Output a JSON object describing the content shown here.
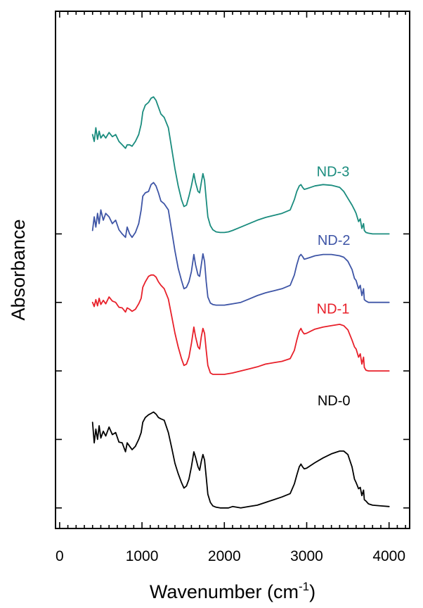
{
  "chart_data": {
    "type": "line",
    "xlabel": "Wavenumber (cm",
    "xlabel_sup": "-1",
    "xlabel_close": ")",
    "ylabel": "Absorbance",
    "xlim": [
      -50,
      4250
    ],
    "ylim": [
      -0.3,
      7.25
    ],
    "x_ticks": [
      0,
      1000,
      2000,
      3000,
      4000
    ],
    "x_tick_labels": [
      "0",
      "1000",
      "2000",
      "3000",
      "4000"
    ],
    "y_major_ticks": [
      0,
      1,
      2,
      3,
      4
    ],
    "y_tick_labels_shown": false,
    "series": [
      {
        "name": "ND-0",
        "color": "#000000",
        "label_at": [
          3330,
          1.5
        ],
        "x": [
          400,
          420,
          440,
          460,
          480,
          500,
          530,
          560,
          600,
          640,
          680,
          720,
          760,
          800,
          820,
          850,
          880,
          920,
          960,
          990,
          1010,
          1040,
          1080,
          1110,
          1140,
          1170,
          1200,
          1230,
          1270,
          1320,
          1360,
          1400,
          1440,
          1480,
          1510,
          1540,
          1570,
          1600,
          1630,
          1650,
          1680,
          1700,
          1720,
          1740,
          1760,
          1780,
          1800,
          1830,
          1860,
          1900,
          1950,
          2000,
          2050,
          2100,
          2200,
          2300,
          2400,
          2500,
          2600,
          2700,
          2800,
          2850,
          2880,
          2910,
          2930,
          2950,
          2970,
          3000,
          3050,
          3100,
          3200,
          3300,
          3400,
          3450,
          3500,
          3550,
          3580,
          3600,
          3630,
          3650,
          3670,
          3690,
          3700,
          3720,
          3750,
          3800,
          3900,
          4000
        ],
        "y": [
          1.25,
          0.95,
          1.15,
          1.0,
          1.2,
          1.02,
          1.12,
          1.05,
          1.18,
          1.07,
          1.1,
          0.96,
          0.95,
          0.82,
          0.95,
          0.9,
          0.85,
          0.9,
          1.0,
          1.1,
          1.25,
          1.32,
          1.36,
          1.38,
          1.4,
          1.37,
          1.32,
          1.3,
          1.28,
          1.1,
          0.88,
          0.65,
          0.5,
          0.37,
          0.29,
          0.32,
          0.42,
          0.6,
          0.82,
          0.74,
          0.6,
          0.55,
          0.68,
          0.78,
          0.7,
          0.45,
          0.2,
          0.08,
          0.03,
          0.01,
          0.0,
          0.0,
          0.0,
          0.02,
          0.0,
          0.02,
          0.04,
          0.08,
          0.12,
          0.16,
          0.21,
          0.35,
          0.48,
          0.6,
          0.64,
          0.6,
          0.57,
          0.58,
          0.62,
          0.66,
          0.73,
          0.79,
          0.83,
          0.83,
          0.78,
          0.6,
          0.42,
          0.37,
          0.28,
          0.3,
          0.18,
          0.26,
          0.12,
          0.1,
          0.06,
          0.04,
          0.03,
          0.02
        ]
      },
      {
        "name": "ND-1",
        "color": "#e8202a",
        "label_at": [
          3320,
          2.84
        ],
        "x": [
          400,
          420,
          440,
          460,
          480,
          500,
          530,
          560,
          600,
          640,
          680,
          720,
          760,
          800,
          820,
          850,
          880,
          920,
          960,
          990,
          1010,
          1040,
          1080,
          1110,
          1140,
          1170,
          1200,
          1230,
          1270,
          1320,
          1360,
          1400,
          1440,
          1480,
          1510,
          1540,
          1570,
          1600,
          1630,
          1650,
          1680,
          1700,
          1720,
          1740,
          1760,
          1780,
          1800,
          1830,
          1860,
          1900,
          1950,
          2000,
          2050,
          2100,
          2200,
          2300,
          2400,
          2500,
          2600,
          2700,
          2800,
          2850,
          2880,
          2910,
          2930,
          2950,
          2970,
          3000,
          3050,
          3100,
          3200,
          3300,
          3400,
          3450,
          3500,
          3550,
          3580,
          3600,
          3630,
          3650,
          3670,
          3690,
          3700,
          3720,
          3750,
          3800,
          3900,
          4000
        ],
        "y": [
          3.0,
          2.94,
          3.04,
          2.95,
          3.06,
          2.97,
          3.03,
          2.98,
          3.08,
          3.02,
          3.0,
          2.93,
          2.92,
          2.86,
          2.92,
          2.9,
          2.87,
          2.9,
          2.98,
          3.06,
          3.22,
          3.3,
          3.38,
          3.4,
          3.4,
          3.37,
          3.3,
          3.25,
          3.2,
          3.05,
          2.8,
          2.55,
          2.35,
          2.18,
          2.08,
          2.1,
          2.2,
          2.4,
          2.64,
          2.5,
          2.35,
          2.32,
          2.5,
          2.62,
          2.55,
          2.3,
          2.08,
          1.97,
          1.95,
          1.95,
          1.95,
          1.95,
          1.96,
          1.97,
          2.0,
          2.03,
          2.06,
          2.1,
          2.12,
          2.14,
          2.18,
          2.3,
          2.45,
          2.58,
          2.62,
          2.57,
          2.54,
          2.55,
          2.58,
          2.61,
          2.64,
          2.66,
          2.68,
          2.66,
          2.6,
          2.45,
          2.35,
          2.32,
          2.2,
          2.25,
          2.1,
          2.2,
          2.05,
          2.01,
          2.0,
          2.0,
          2.0,
          2.0
        ]
      },
      {
        "name": "ND-2",
        "color": "#3e55a6",
        "label_at": [
          3330,
          3.84
        ],
        "x": [
          400,
          420,
          440,
          460,
          480,
          500,
          530,
          560,
          600,
          640,
          680,
          720,
          760,
          800,
          820,
          850,
          880,
          920,
          960,
          990,
          1010,
          1040,
          1080,
          1110,
          1140,
          1170,
          1200,
          1230,
          1270,
          1320,
          1360,
          1400,
          1440,
          1480,
          1510,
          1540,
          1570,
          1600,
          1630,
          1650,
          1680,
          1700,
          1720,
          1740,
          1760,
          1780,
          1800,
          1830,
          1860,
          1900,
          1950,
          2000,
          2050,
          2100,
          2200,
          2300,
          2400,
          2500,
          2600,
          2700,
          2800,
          2850,
          2880,
          2910,
          2930,
          2950,
          2970,
          3000,
          3050,
          3100,
          3200,
          3300,
          3400,
          3450,
          3500,
          3550,
          3580,
          3600,
          3630,
          3650,
          3670,
          3690,
          3700,
          3720,
          3750,
          3800,
          3900,
          4000
        ],
        "y": [
          4.05,
          4.25,
          4.1,
          4.3,
          4.15,
          4.35,
          4.2,
          4.3,
          4.25,
          4.15,
          4.2,
          4.06,
          4.0,
          3.95,
          4.1,
          4.0,
          3.95,
          4.02,
          4.15,
          4.35,
          4.55,
          4.6,
          4.62,
          4.72,
          4.75,
          4.7,
          4.6,
          4.48,
          4.44,
          4.35,
          4.05,
          3.75,
          3.5,
          3.32,
          3.2,
          3.22,
          3.3,
          3.45,
          3.7,
          3.55,
          3.4,
          3.38,
          3.55,
          3.71,
          3.6,
          3.3,
          3.08,
          2.99,
          2.97,
          2.96,
          2.96,
          2.96,
          2.97,
          2.98,
          3.0,
          3.05,
          3.1,
          3.14,
          3.17,
          3.2,
          3.25,
          3.4,
          3.55,
          3.67,
          3.7,
          3.67,
          3.63,
          3.64,
          3.66,
          3.68,
          3.7,
          3.7,
          3.68,
          3.66,
          3.6,
          3.48,
          3.35,
          3.32,
          3.2,
          3.25,
          3.1,
          3.2,
          3.04,
          3.02,
          3.0,
          3.0,
          3.0,
          3.0
        ]
      },
      {
        "name": "ND-3",
        "color": "#1a8c7e",
        "label_at": [
          3320,
          4.84
        ],
        "x": [
          400,
          420,
          440,
          460,
          480,
          500,
          530,
          560,
          600,
          640,
          680,
          720,
          760,
          800,
          820,
          850,
          880,
          920,
          960,
          990,
          1010,
          1040,
          1080,
          1110,
          1140,
          1170,
          1200,
          1230,
          1270,
          1320,
          1360,
          1400,
          1440,
          1480,
          1510,
          1540,
          1570,
          1600,
          1630,
          1650,
          1680,
          1700,
          1720,
          1740,
          1760,
          1780,
          1800,
          1830,
          1860,
          1900,
          1950,
          2000,
          2050,
          2100,
          2200,
          2300,
          2400,
          2500,
          2600,
          2700,
          2800,
          2850,
          2880,
          2910,
          2930,
          2950,
          2970,
          3000,
          3050,
          3100,
          3200,
          3300,
          3400,
          3450,
          3500,
          3550,
          3580,
          3600,
          3630,
          3650,
          3670,
          3690,
          3700,
          3720,
          3750,
          3800,
          3900,
          4000
        ],
        "y": [
          5.45,
          5.35,
          5.55,
          5.38,
          5.5,
          5.4,
          5.45,
          5.4,
          5.48,
          5.42,
          5.45,
          5.35,
          5.3,
          5.25,
          5.3,
          5.3,
          5.28,
          5.35,
          5.45,
          5.6,
          5.78,
          5.88,
          5.92,
          5.98,
          6.0,
          5.95,
          5.85,
          5.75,
          5.7,
          5.55,
          5.25,
          4.95,
          4.7,
          4.5,
          4.4,
          4.42,
          4.55,
          4.7,
          4.88,
          4.75,
          4.62,
          4.6,
          4.75,
          4.88,
          4.78,
          4.5,
          4.25,
          4.12,
          4.06,
          4.03,
          4.02,
          4.02,
          4.03,
          4.05,
          4.1,
          4.15,
          4.2,
          4.24,
          4.27,
          4.3,
          4.35,
          4.5,
          4.62,
          4.7,
          4.72,
          4.68,
          4.65,
          4.66,
          4.68,
          4.7,
          4.72,
          4.71,
          4.68,
          4.62,
          4.52,
          4.42,
          4.35,
          4.3,
          4.18,
          4.22,
          4.08,
          4.15,
          4.05,
          4.02,
          4.01,
          4.0,
          4.0,
          4.0
        ]
      }
    ]
  }
}
